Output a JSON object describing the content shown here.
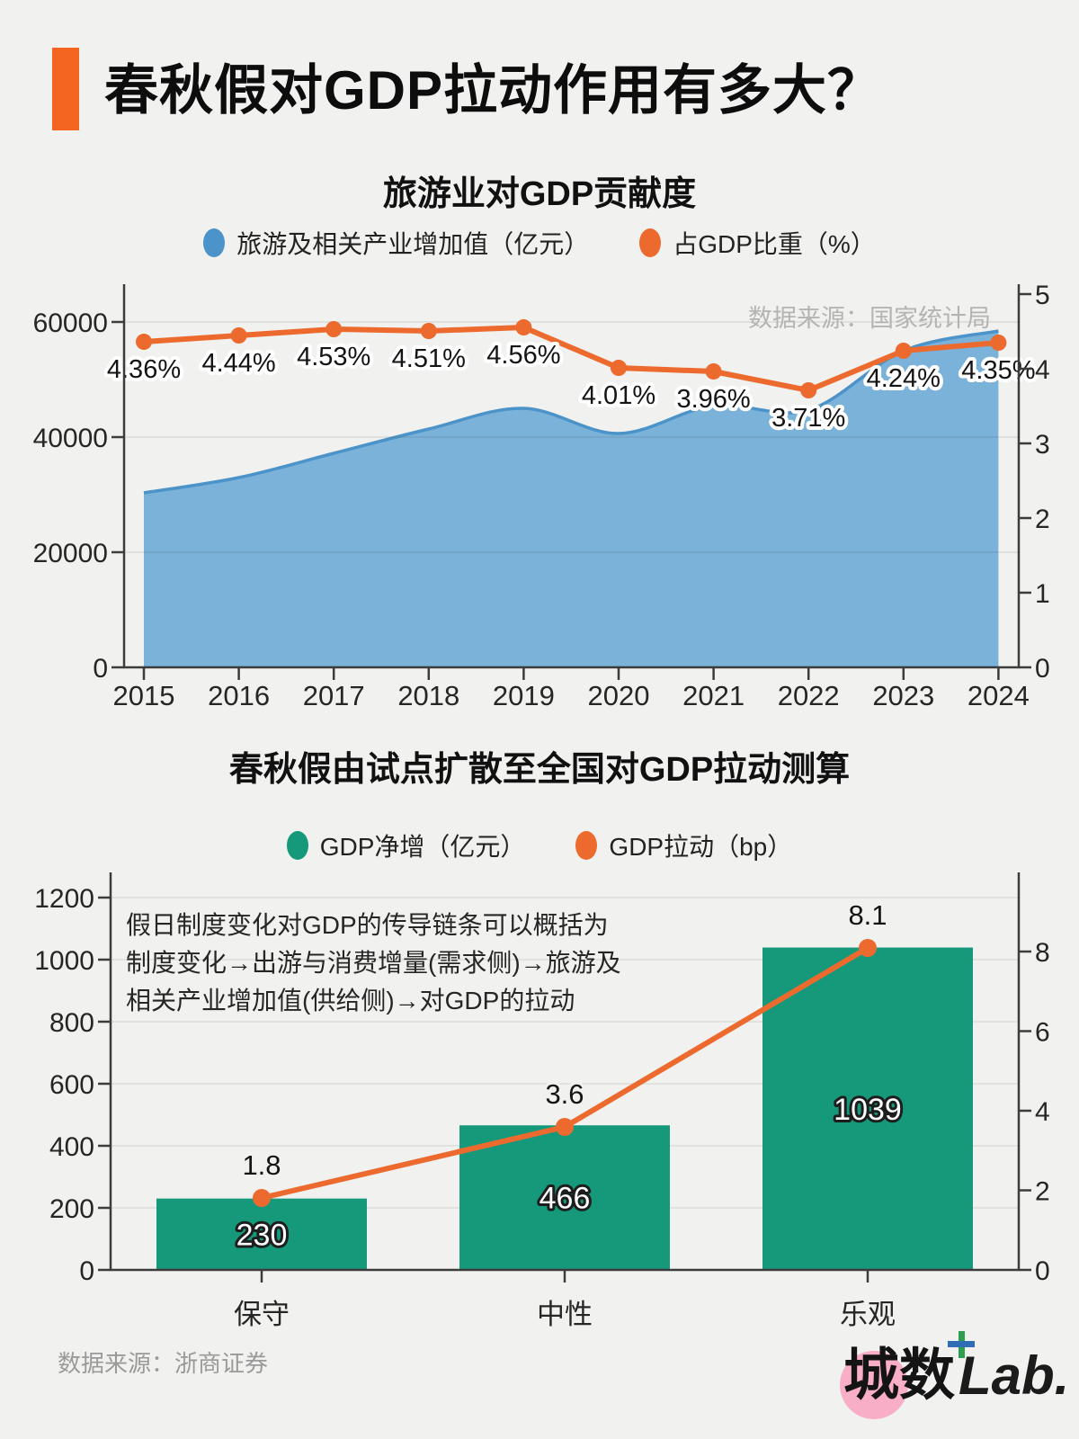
{
  "page": {
    "background": "#f1f1ef"
  },
  "header": {
    "title": "春秋假对GDP拉动作用有多大？",
    "accent_color": "#f4651f"
  },
  "chart_data": [
    {
      "type": "area",
      "title": "旅游业对GDP贡献度",
      "source_note": "数据来源：国家统计局",
      "x": [
        "2015",
        "2016",
        "2017",
        "2018",
        "2019",
        "2020",
        "2021",
        "2022",
        "2023",
        "2024"
      ],
      "series": [
        {
          "name": "旅游及相关产业增加值（亿元）",
          "type": "area",
          "axis": "left",
          "fill": "#7bb2da",
          "stroke": "#4b93c8",
          "values": [
            30297,
            32979,
            37210,
            41478,
            44989,
            40628,
            45484,
            44672,
            54960,
            58500
          ]
        },
        {
          "name": "占GDP比重（%）",
          "type": "line",
          "axis": "right",
          "color": "#ed6a2f",
          "values": [
            4.36,
            4.44,
            4.53,
            4.51,
            4.56,
            4.01,
            3.96,
            3.71,
            4.24,
            4.35
          ],
          "point_labels": [
            "4.36%",
            "4.44%",
            "4.53%",
            "4.51%",
            "4.56%",
            "4.01%",
            "3.96%",
            "3.71%",
            "4.24%",
            "4.35%"
          ]
        }
      ],
      "left_axis": {
        "ticks": [
          0,
          20000,
          40000,
          60000
        ],
        "range": [
          0,
          66300
        ]
      },
      "right_axis": {
        "ticks": [
          0,
          1,
          2,
          3,
          4,
          5
        ],
        "range": [
          0,
          5.12
        ]
      },
      "grid": true,
      "legend_position": "top"
    },
    {
      "type": "bar",
      "title": "春秋假由试点扩散至全国对GDP拉动测算",
      "source_note": "数据来源：浙商证券",
      "categories": [
        "保守",
        "中性",
        "乐观"
      ],
      "series": [
        {
          "name": "GDP净增（亿元）",
          "type": "bar",
          "axis": "left",
          "color": "#16997a",
          "values": [
            230,
            466,
            1039
          ]
        },
        {
          "name": "GDP拉动（bp）",
          "type": "line",
          "axis": "right",
          "color": "#ed6a2f",
          "values": [
            1.8,
            3.6,
            8.1
          ],
          "point_labels": [
            "1.8",
            "3.6",
            "8.1"
          ]
        }
      ],
      "left_axis": {
        "ticks": [
          0,
          200,
          400,
          600,
          800,
          1000,
          1200
        ],
        "range": [
          0,
          1280
        ]
      },
      "right_axis": {
        "ticks": [
          0,
          2,
          4,
          6,
          8
        ],
        "range": [
          0,
          10
        ]
      },
      "annotation": [
        "假日制度变化对GDP的传导链条可以概括为",
        "制度变化→出游与消费增量(需求侧)→旅游及",
        "相关产业增加值(供给侧)→对GDP的拉动"
      ],
      "grid": true,
      "legend_position": "top"
    }
  ],
  "footer": {
    "logo_cn": "城数",
    "logo_lab": "Lab.",
    "logo_pink": "#f8aec6",
    "logo_plus_green": "#2f9e4f",
    "logo_plus_blue": "#2f6db5"
  }
}
